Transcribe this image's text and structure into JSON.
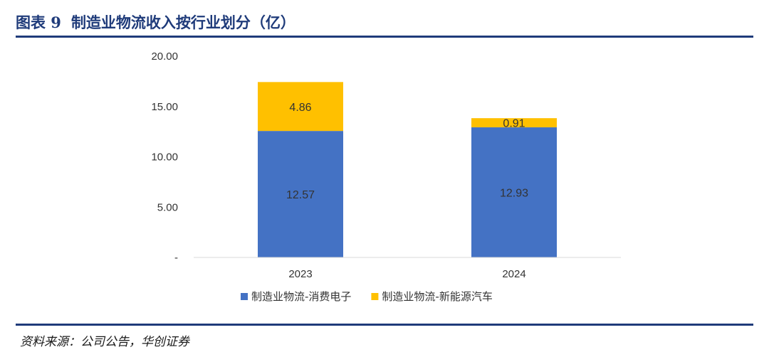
{
  "header": {
    "label": "图表 9",
    "title": "制造业物流收入按行业划分（亿）"
  },
  "footer": {
    "source": "资料来源：公司公告，华创证券"
  },
  "colors": {
    "brand": "#1f3b7a",
    "series_blue": "#4472c4",
    "series_gold": "#ffc000"
  },
  "chart_data": {
    "type": "bar",
    "stacked": true,
    "categories": [
      "2023",
      "2024"
    ],
    "series": [
      {
        "name": "制造业物流-消费电子",
        "values": [
          12.57,
          12.93
        ],
        "labels": [
          "12.57",
          "12.93"
        ],
        "color": "#4472c4"
      },
      {
        "name": "制造业物流-新能源汽车",
        "values": [
          4.86,
          0.91
        ],
        "labels": [
          "4.86",
          "0.91"
        ],
        "color": "#ffc000"
      }
    ],
    "ylim": [
      0,
      20
    ],
    "yticks": [
      0,
      5,
      10,
      15,
      20
    ],
    "ytick_labels": [
      "-",
      "5.00",
      "10.00",
      "15.00",
      "20.00"
    ],
    "grid": false,
    "legend_position": "bottom"
  }
}
